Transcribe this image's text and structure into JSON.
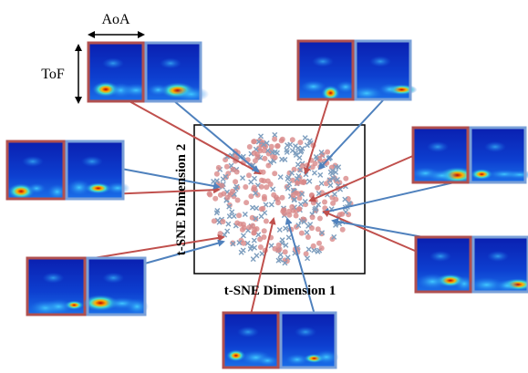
{
  "labels": {
    "aoa": "AoA",
    "tof": "ToF",
    "x_axis": "t-SNE Dimension 1",
    "y_axis": "t-SNE Dimension 2"
  }
}
